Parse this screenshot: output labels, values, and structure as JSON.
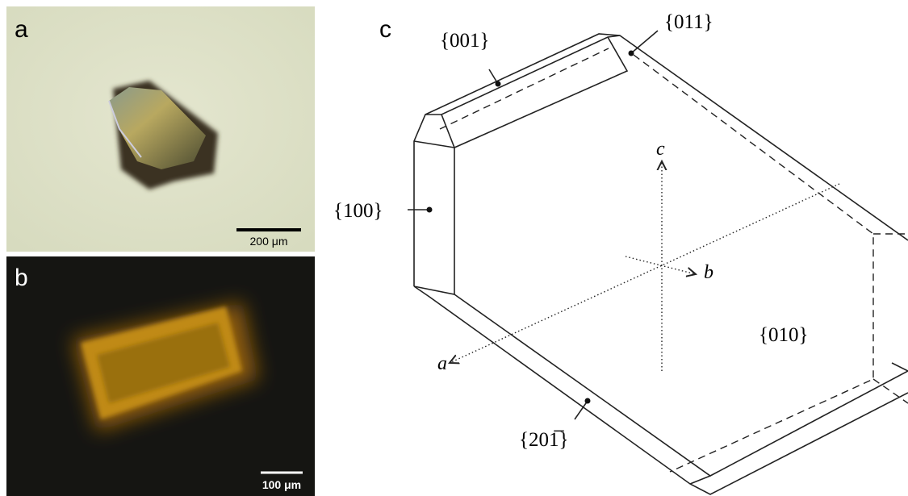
{
  "panels": [
    {
      "label": "a",
      "scale_bar": "200 μm"
    },
    {
      "label": "b",
      "scale_bar": "100 μm"
    },
    {
      "label": "c",
      "faces": [
        "{001}",
        "{011}",
        "{100}",
        "{010}",
        "{201̅}"
      ],
      "axes": [
        "c",
        "b",
        "a"
      ]
    }
  ]
}
